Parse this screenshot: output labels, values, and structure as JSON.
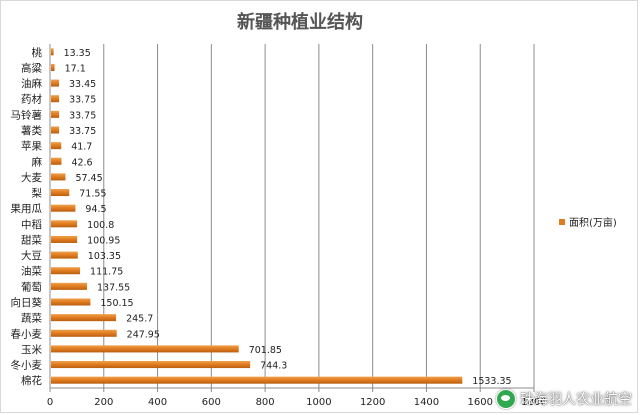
{
  "chart_data": {
    "type": "bar",
    "orientation": "horizontal",
    "title": "新疆种植业结构",
    "categories": [
      "桃",
      "高粱",
      "油麻",
      "药材",
      "马铃薯",
      "薯类",
      "苹果",
      "麻",
      "大麦",
      "梨",
      "果用瓜",
      "中稻",
      "甜菜",
      "大豆",
      "油菜",
      "葡萄",
      "向日葵",
      "蔬菜",
      "春小麦",
      "玉米",
      "冬小麦",
      "棉花"
    ],
    "series": [
      {
        "name": "面积(万亩)",
        "values": [
          13.35,
          17.1,
          33.45,
          33.75,
          33.75,
          33.75,
          41.7,
          42.6,
          57.45,
          71.55,
          94.5,
          100.8,
          100.95,
          103.35,
          111.75,
          137.55,
          150.15,
          245.7,
          247.95,
          701.85,
          744.3,
          1533.35
        ],
        "value_labels": [
          "13.35",
          "17.1",
          "33.45",
          "33.75",
          "33.75",
          "33.75",
          "41.7",
          "42.6",
          "57.45",
          "71.55",
          "94.5",
          "100.8",
          "100.95",
          "103.35",
          "111.75",
          "137.55",
          "150.15",
          "245.7",
          "247.95",
          "701.85",
          "744.3",
          "1533.35"
        ],
        "color": "#e07b1f"
      }
    ],
    "xlim": [
      0,
      1800
    ],
    "xticks": [
      "0",
      "200",
      "400",
      "600",
      "800",
      "1000",
      "1200",
      "1400",
      "1600",
      "1800"
    ],
    "grid": "vertical",
    "legend": "right"
  },
  "watermark": {
    "text": "珠海羽人农业航空",
    "icon": "wechat-icon"
  }
}
